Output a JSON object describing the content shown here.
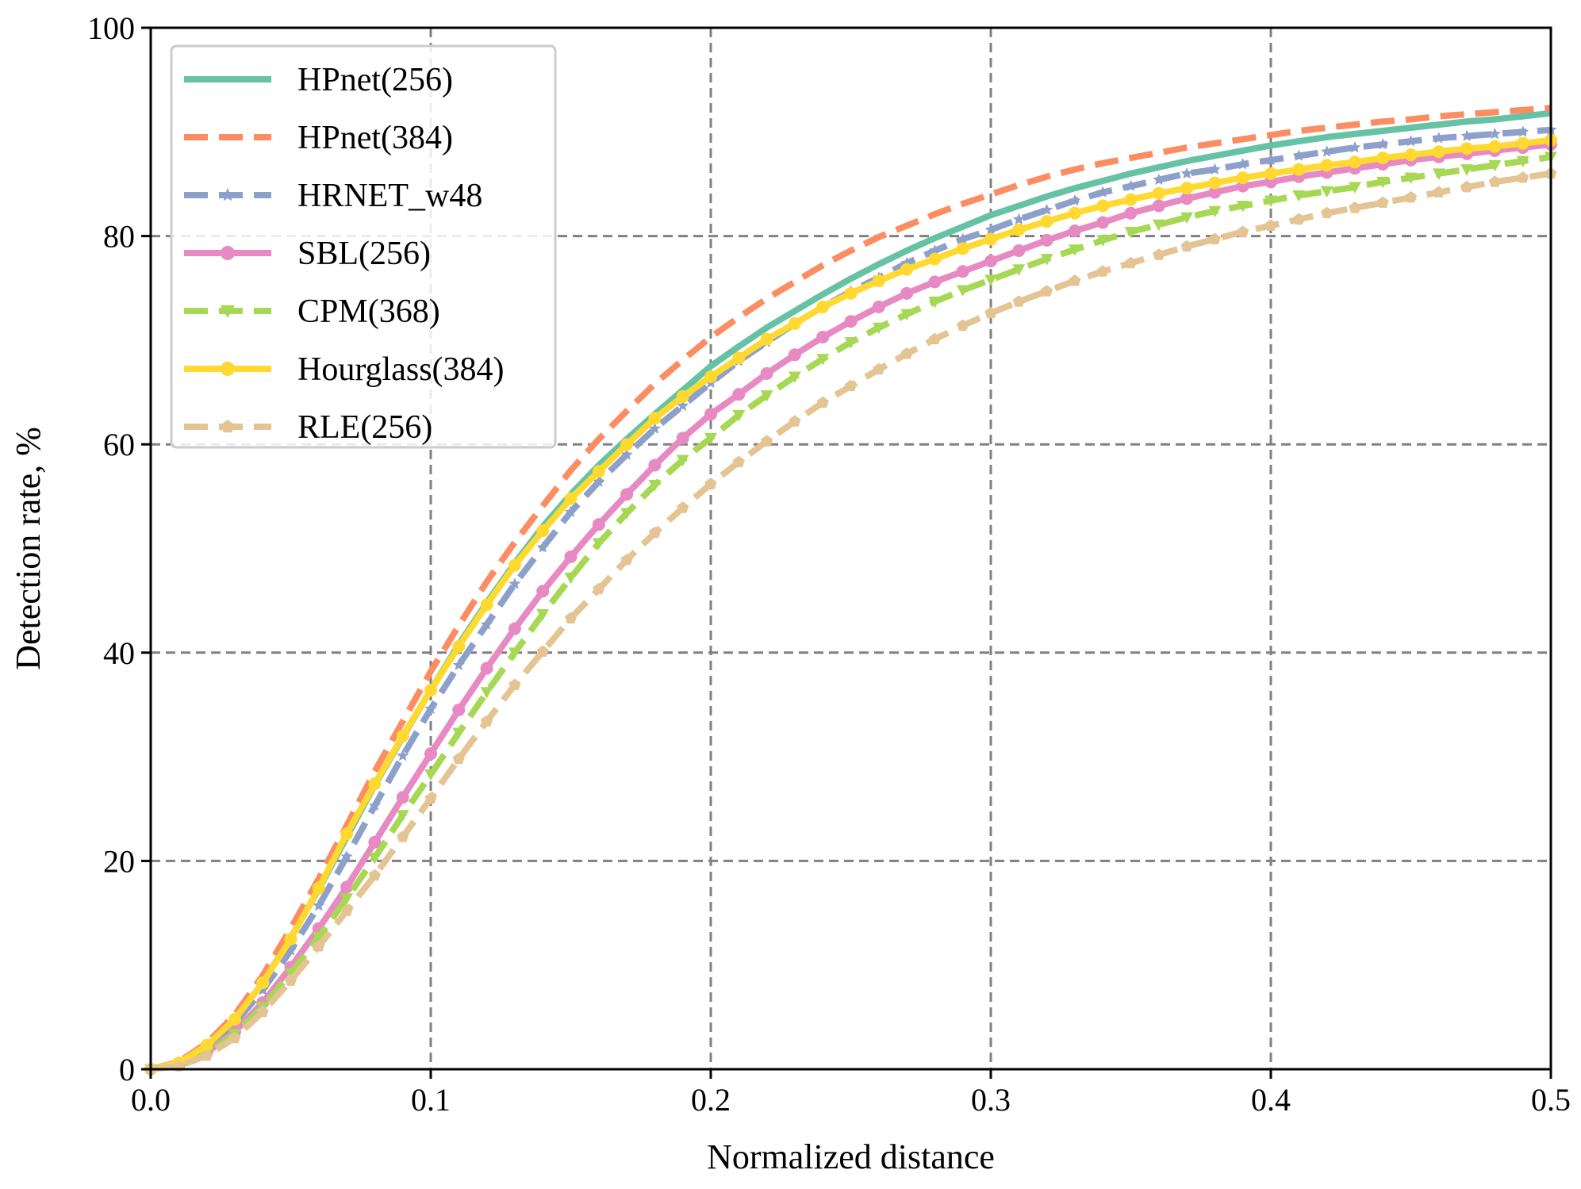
{
  "chart_data": {
    "type": "line",
    "xlabel": "Normalized distance",
    "ylabel": "Detection rate, %",
    "xlim": [
      0.0,
      0.5
    ],
    "ylim": [
      0,
      100
    ],
    "xticks": [
      0.0,
      0.1,
      0.2,
      0.3,
      0.4,
      0.5
    ],
    "xtick_labels": [
      "0.0",
      "0.1",
      "0.2",
      "0.3",
      "0.4",
      "0.5"
    ],
    "yticks": [
      0,
      20,
      40,
      60,
      80,
      100
    ],
    "ytick_labels": [
      "0",
      "20",
      "40",
      "60",
      "80",
      "100"
    ],
    "grid": true,
    "legend_position": "top-left",
    "x": [
      0.0,
      0.01,
      0.02,
      0.03,
      0.04,
      0.05,
      0.06,
      0.07,
      0.08,
      0.09,
      0.1,
      0.11,
      0.12,
      0.13,
      0.14,
      0.15,
      0.16,
      0.17,
      0.18,
      0.19,
      0.2,
      0.21,
      0.22,
      0.23,
      0.24,
      0.25,
      0.26,
      0.27,
      0.28,
      0.29,
      0.3,
      0.31,
      0.32,
      0.33,
      0.34,
      0.35,
      0.36,
      0.37,
      0.38,
      0.39,
      0.4,
      0.41,
      0.42,
      0.43,
      0.44,
      0.45,
      0.46,
      0.47,
      0.48,
      0.49,
      0.5
    ],
    "series": [
      {
        "name": "HPnet(256)",
        "color": "#66c2a5",
        "dash": "solid",
        "marker": "none",
        "values": [
          0.0,
          0.6,
          2.3,
          4.8,
          8.3,
          12.6,
          17.3,
          22.3,
          27.3,
          31.9,
          36.4,
          40.8,
          44.8,
          48.6,
          52.1,
          55.2,
          58.0,
          60.5,
          62.9,
          65.2,
          67.5,
          69.4,
          71.2,
          72.8,
          74.4,
          75.9,
          77.3,
          78.6,
          79.8,
          80.9,
          82.0,
          82.9,
          83.8,
          84.6,
          85.3,
          86.0,
          86.6,
          87.2,
          87.7,
          88.2,
          88.7,
          89.1,
          89.5,
          89.8,
          90.1,
          90.4,
          90.7,
          91.0,
          91.2,
          91.5,
          91.8
        ]
      },
      {
        "name": "HPnet(384)",
        "color": "#fc8d62",
        "dash": "dashed",
        "marker": "none",
        "values": [
          0.0,
          0.7,
          2.5,
          5.2,
          9.0,
          13.5,
          18.3,
          23.4,
          28.6,
          33.4,
          38.2,
          42.6,
          46.8,
          50.6,
          54.1,
          57.5,
          60.5,
          63.2,
          65.8,
          68.1,
          70.3,
          72.2,
          74.0,
          75.6,
          77.2,
          78.6,
          79.9,
          81.0,
          82.1,
          83.1,
          84.0,
          84.9,
          85.7,
          86.4,
          87.0,
          87.5,
          88.0,
          88.5,
          88.9,
          89.3,
          89.7,
          90.1,
          90.4,
          90.7,
          91.0,
          91.2,
          91.5,
          91.7,
          91.9,
          92.1,
          92.3
        ]
      },
      {
        "name": "HRNET_w48",
        "color": "#8da0cb",
        "dash": "dashed",
        "marker": "star",
        "values": [
          0.0,
          0.5,
          2.0,
          4.4,
          7.6,
          11.4,
          15.7,
          20.4,
          25.3,
          30.1,
          34.6,
          38.8,
          42.7,
          46.6,
          50.1,
          53.5,
          56.4,
          59.0,
          61.5,
          63.7,
          65.9,
          68.0,
          69.8,
          71.6,
          73.2,
          74.7,
          76.0,
          77.4,
          78.6,
          79.7,
          80.6,
          81.6,
          82.5,
          83.4,
          84.2,
          84.8,
          85.4,
          86.0,
          86.4,
          86.9,
          87.3,
          87.7,
          88.1,
          88.5,
          88.8,
          89.1,
          89.4,
          89.6,
          89.8,
          90.0,
          90.2
        ]
      },
      {
        "name": "SBL(256)",
        "color": "#e78ac3",
        "dash": "solid",
        "marker": "circle",
        "values": [
          0.0,
          0.4,
          1.6,
          3.6,
          6.4,
          9.8,
          13.5,
          17.5,
          21.8,
          26.1,
          30.3,
          34.5,
          38.5,
          42.3,
          45.9,
          49.2,
          52.3,
          55.2,
          58.0,
          60.6,
          62.9,
          64.8,
          66.8,
          68.6,
          70.3,
          71.8,
          73.2,
          74.5,
          75.6,
          76.6,
          77.6,
          78.6,
          79.6,
          80.5,
          81.3,
          82.2,
          82.9,
          83.6,
          84.2,
          84.8,
          85.2,
          85.7,
          86.1,
          86.5,
          86.9,
          87.3,
          87.6,
          87.9,
          88.2,
          88.5,
          88.8
        ]
      },
      {
        "name": "CPM(368)",
        "color": "#a6d854",
        "dash": "dashed",
        "marker": "triangle-down",
        "values": [
          0.0,
          0.4,
          1.5,
          3.4,
          6.0,
          9.2,
          12.7,
          16.4,
          20.3,
          24.4,
          28.3,
          32.3,
          36.2,
          40.0,
          43.7,
          47.2,
          50.5,
          53.4,
          56.1,
          58.5,
          60.6,
          62.8,
          64.7,
          66.5,
          68.2,
          69.8,
          71.2,
          72.5,
          73.7,
          74.8,
          75.8,
          76.8,
          77.8,
          78.7,
          79.6,
          80.4,
          81.1,
          81.8,
          82.4,
          82.9,
          83.4,
          83.9,
          84.3,
          84.7,
          85.2,
          85.6,
          86.0,
          86.4,
          86.8,
          87.2,
          87.6
        ]
      },
      {
        "name": "Hourglass(384)",
        "color": "#ffd92f",
        "dash": "solid",
        "marker": "circle",
        "values": [
          0.0,
          0.6,
          2.3,
          4.8,
          8.3,
          12.5,
          17.4,
          22.6,
          27.4,
          32.0,
          36.4,
          40.6,
          44.6,
          48.4,
          51.7,
          54.8,
          57.4,
          60.0,
          62.5,
          64.6,
          66.5,
          68.3,
          70.1,
          71.6,
          73.2,
          74.5,
          75.7,
          76.8,
          77.8,
          78.8,
          79.7,
          80.6,
          81.4,
          82.2,
          82.9,
          83.5,
          84.1,
          84.6,
          85.1,
          85.6,
          86.0,
          86.4,
          86.8,
          87.1,
          87.5,
          87.8,
          88.1,
          88.4,
          88.6,
          88.9,
          89.2
        ]
      },
      {
        "name": "RLE(256)",
        "color": "#e5c494",
        "dash": "dashed",
        "marker": "pentagon",
        "values": [
          0.0,
          0.3,
          1.3,
          3.0,
          5.5,
          8.5,
          11.8,
          15.2,
          18.6,
          22.3,
          26.0,
          29.8,
          33.4,
          36.9,
          40.1,
          43.3,
          46.1,
          48.9,
          51.5,
          53.9,
          56.2,
          58.3,
          60.3,
          62.2,
          64.0,
          65.6,
          67.2,
          68.7,
          70.1,
          71.4,
          72.6,
          73.7,
          74.7,
          75.7,
          76.6,
          77.4,
          78.2,
          79.0,
          79.7,
          80.4,
          81.0,
          81.6,
          82.2,
          82.7,
          83.2,
          83.7,
          84.2,
          84.7,
          85.2,
          85.6,
          86.0
        ]
      }
    ]
  }
}
